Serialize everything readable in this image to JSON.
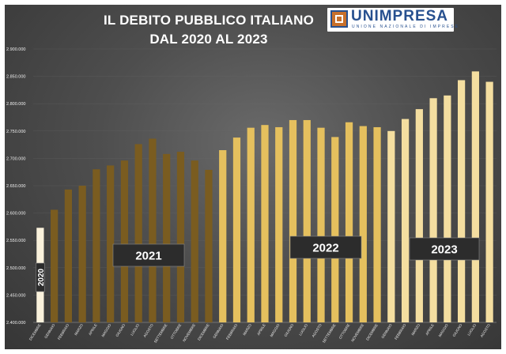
{
  "header": {
    "title_line1": "IL DEBITO PUBBLICO ITALIANO",
    "title_line2": "DAL 2020 AL 2023"
  },
  "logo": {
    "name": "UNIMPRESA",
    "subtitle": "UNIONE NAZIONALE DI IMPRESE"
  },
  "colors": {
    "background": "#4e4e4e",
    "bar_2020": "#faf2dc",
    "bar_2021": "#7a5c20",
    "bar_2022": "#e5c05e",
    "bar_2023": "#f4dea0"
  },
  "chart_data": {
    "type": "bar",
    "title": "IL DEBITO PUBBLICO ITALIANO DAL 2020 AL 2023",
    "xlabel": "",
    "ylabel": "",
    "ylim": [
      2400000,
      2900000
    ],
    "yticks": [
      "2.400.000",
      "2.450.000",
      "2.500.000",
      "2.550.000",
      "2.600.000",
      "2.650.000",
      "2.700.000",
      "2.750.000",
      "2.800.000",
      "2.850.000",
      "2.900.000"
    ],
    "categories": [
      "DICEMBRE",
      "GENNAIO",
      "FEBBRAIO",
      "MARZO",
      "APRILE",
      "MAGGIO",
      "GIUGNO",
      "LUGLIO",
      "AGOSTO",
      "SETTEMBRE",
      "OTTOBRE",
      "NOVEMBRE",
      "DICEMBRE",
      "GENNAIO",
      "FEBBRAIO",
      "MARZO",
      "APRILE",
      "MAGGIO",
      "GIUGNO",
      "LUGLIO",
      "AGOSTO",
      "SETTEMBRE",
      "OTTOBRE",
      "NOVEMBRE",
      "DICEMBRE",
      "GENNAIO",
      "FEBBRAIO",
      "MARZO",
      "APRILE",
      "MAGGIO",
      "GIUGNO",
      "LUGLIO",
      "AGOSTO"
    ],
    "values": [
      2573000,
      2606000,
      2643000,
      2650000,
      2680000,
      2687000,
      2696000,
      2726000,
      2736000,
      2708000,
      2712000,
      2696000,
      2679000,
      2715000,
      2738000,
      2756000,
      2761000,
      2757000,
      2770000,
      2770000,
      2756000,
      2739000,
      2766000,
      2759000,
      2757000,
      2750000,
      2772000,
      2790000,
      2810000,
      2815000,
      2843000,
      2859000,
      2840000
    ],
    "years": [
      {
        "label": "2020",
        "start": 0,
        "end": 0
      },
      {
        "label": "2021",
        "start": 1,
        "end": 12
      },
      {
        "label": "2022",
        "start": 13,
        "end": 24
      },
      {
        "label": "2023",
        "start": 25,
        "end": 32
      }
    ]
  }
}
